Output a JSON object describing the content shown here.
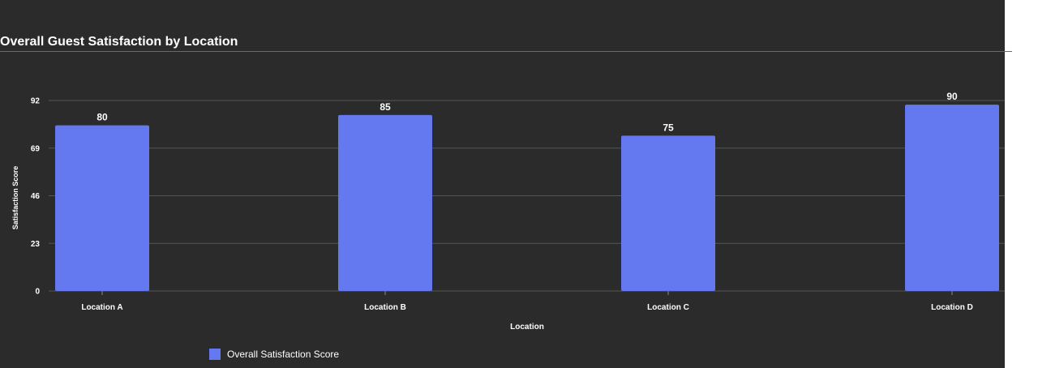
{
  "chart_data": {
    "type": "bar",
    "title": "Overall Guest Satisfaction by Location",
    "xlabel": "Location",
    "ylabel": "Satisfaction Score",
    "categories": [
      "Location A",
      "Location B",
      "Location C",
      "Location D"
    ],
    "series": [
      {
        "name": "Overall Satisfaction Score",
        "values": [
          80,
          85,
          75,
          90
        ]
      }
    ],
    "yticks": [
      0,
      23,
      46,
      69,
      92
    ],
    "ylim": [
      0,
      92
    ],
    "grid": true,
    "legend_position": "bottom-left",
    "data_labels": true
  },
  "colors": {
    "background": "#2b2b2b",
    "bar": "#6479ef",
    "grid": "#555555",
    "text": "#ffffff"
  }
}
